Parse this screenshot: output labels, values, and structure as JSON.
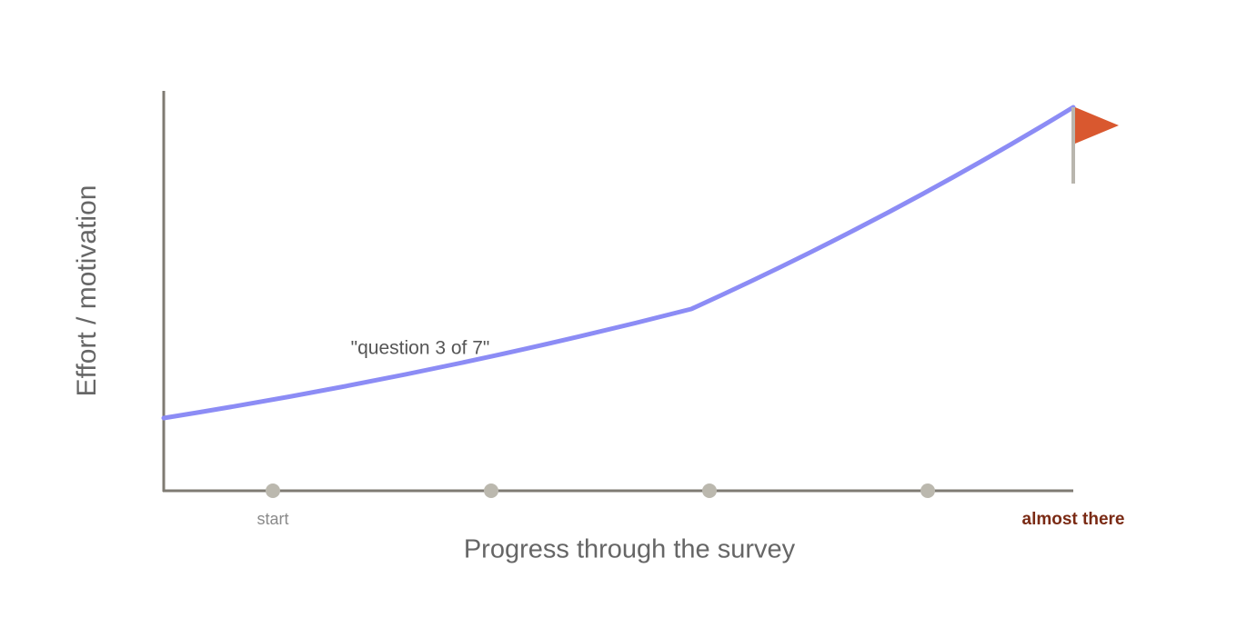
{
  "axes": {
    "y_label": "Effort / motivation",
    "x_label": "Progress through the survey"
  },
  "markers": {
    "start": "start",
    "end": "almost there"
  },
  "annotation": "\"question 3 of 7\""
}
